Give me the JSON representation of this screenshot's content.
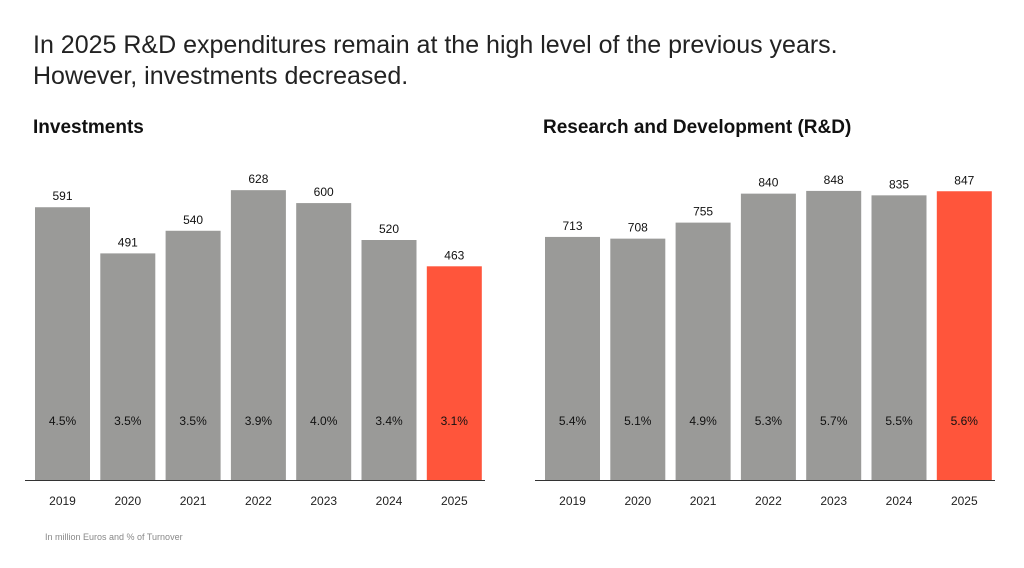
{
  "headline": {
    "line1": "In 2025 R&D expenditures remain at the high level of the previous years.",
    "line2": "However, investments decreased."
  },
  "footnote": "In million Euros and % of Turnover",
  "colors": {
    "bar": "#9a9a98",
    "highlight": "#ff553b",
    "axis": "#333333"
  },
  "chart_data": [
    {
      "type": "bar",
      "title": "Investments",
      "categories": [
        "2019",
        "2020",
        "2021",
        "2022",
        "2023",
        "2024",
        "2025"
      ],
      "values": [
        591,
        491,
        540,
        628,
        600,
        520,
        463
      ],
      "value_labels": [
        "591",
        "491",
        "540",
        "628",
        "600",
        "520",
        "463"
      ],
      "percent_labels": [
        "4.5%",
        "3.5%",
        "3.5%",
        "3.9%",
        "4.0%",
        "3.4%",
        "3.1%"
      ],
      "highlight_index": 6,
      "xlabel": "",
      "ylabel": "",
      "ylim": [
        0,
        650
      ]
    },
    {
      "type": "bar",
      "title": "Research and Development (R&D)",
      "categories": [
        "2019",
        "2020",
        "2021",
        "2022",
        "2023",
        "2024",
        "2025"
      ],
      "values": [
        713,
        708,
        755,
        840,
        848,
        835,
        847
      ],
      "value_labels": [
        "713",
        "708",
        "755",
        "840",
        "848",
        "835",
        "847"
      ],
      "percent_labels": [
        "5.4%",
        "5.1%",
        "4.9%",
        "5.3%",
        "5.7%",
        "5.5%",
        "5.6%"
      ],
      "highlight_index": 6,
      "xlabel": "",
      "ylabel": "",
      "ylim": [
        0,
        880
      ]
    }
  ]
}
